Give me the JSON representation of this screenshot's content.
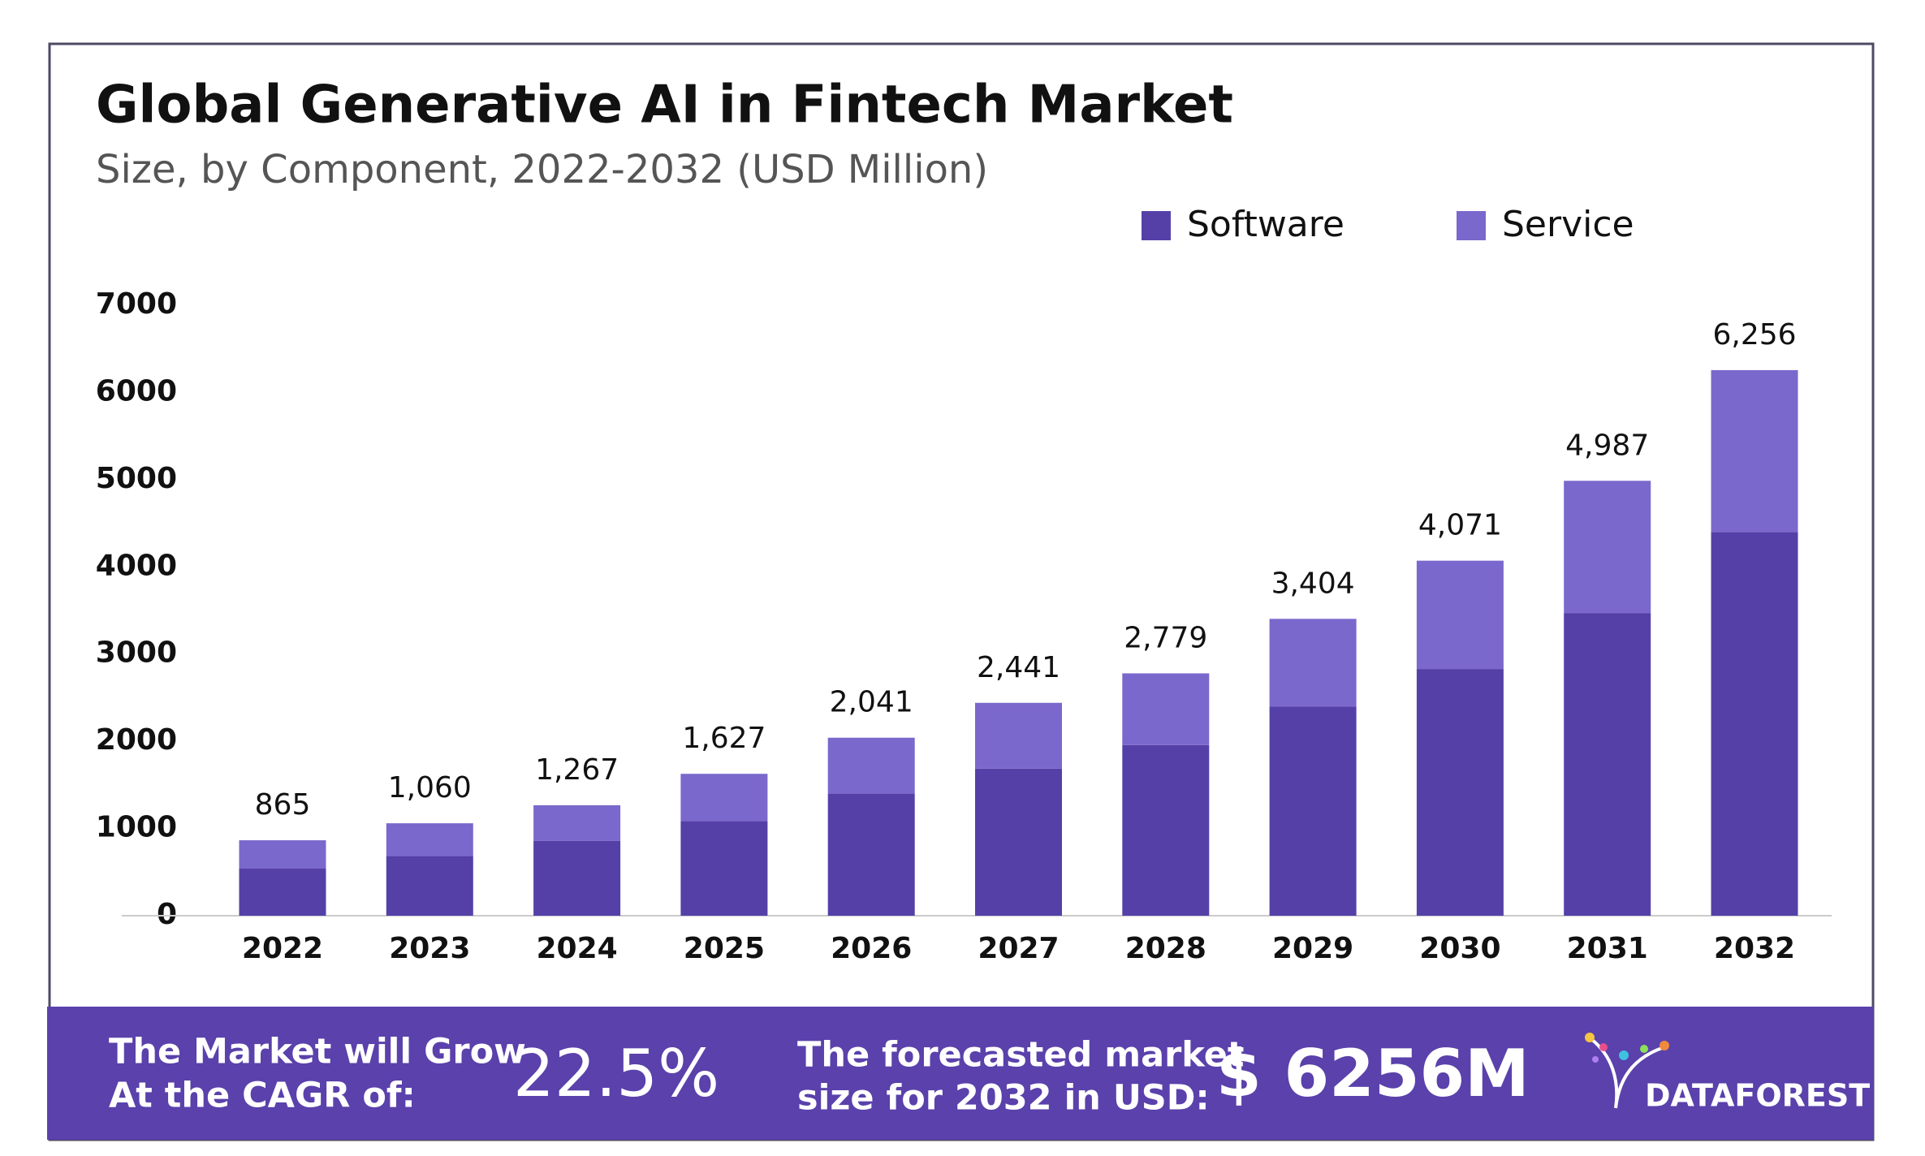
{
  "chart_data": {
    "type": "stacked-bar",
    "title": "Global Generative AI in Fintech Market",
    "subtitle": "Size, by Component, 2022-2032 (USD Million)",
    "categories": [
      "2022",
      "2023",
      "2024",
      "2025",
      "2026",
      "2027",
      "2028",
      "2029",
      "2030",
      "2031",
      "2032"
    ],
    "series": [
      {
        "name": "Software",
        "color": "#5540a8",
        "values": [
          540,
          686,
          857,
          1086,
          1400,
          1686,
          1957,
          2400,
          2829,
          3471,
          4400
        ]
      },
      {
        "name": "Service",
        "color": "#7b68cc",
        "values": [
          325,
          374,
          410,
          541,
          641,
          755,
          822,
          1004,
          1242,
          1516,
          1856
        ]
      }
    ],
    "totals": {
      "values": [
        865,
        1060,
        1267,
        1627,
        2041,
        2441,
        2779,
        3404,
        4071,
        4987,
        6256
      ],
      "value_labels": [
        "865",
        "1,060",
        "1,267",
        "1,627",
        "2,041",
        "2,441",
        "2,779",
        "3,404",
        "4,071",
        "4,987",
        "6,256"
      ]
    },
    "ylim": [
      0,
      7000
    ],
    "yticks": [
      0,
      1000,
      2000,
      3000,
      4000,
      5000,
      6000,
      7000
    ],
    "grid": false,
    "legend": "top-right"
  },
  "footer": {
    "cagr_text": [
      "The Market will Grow",
      "At the CAGR of:"
    ],
    "cagr_value": "22.5%",
    "forecast_text": [
      "The forecasted market",
      "size for 2032 in USD:"
    ],
    "forecast_value": "$ 6256M",
    "brand": "DATAFOREST"
  }
}
